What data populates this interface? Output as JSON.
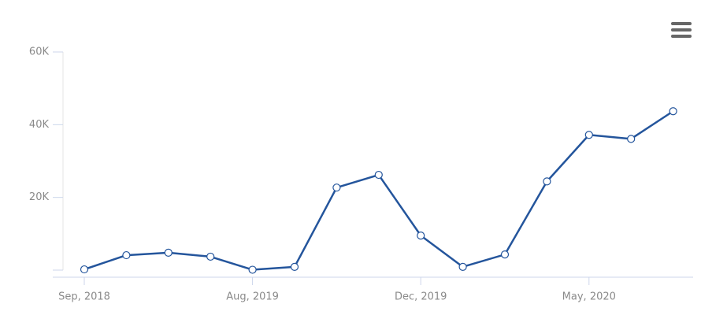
{
  "chart_data": {
    "type": "line",
    "categories": [
      "Sep, 2018",
      null,
      null,
      null,
      "Aug, 2019",
      null,
      null,
      null,
      "Dec, 2019",
      null,
      null,
      null,
      "May, 2020",
      null,
      null
    ],
    "series": [
      {
        "color": "#24559c",
        "values": [
          200,
          4100,
          4800,
          3700,
          100,
          900,
          22700,
          26200,
          9500,
          900,
          4300,
          24400,
          37200,
          36100,
          43700
        ]
      }
    ],
    "ylim": [
      0,
      60000
    ],
    "yticks": [
      {
        "value": 20000,
        "label": "20K"
      },
      {
        "value": 40000,
        "label": "40K"
      },
      {
        "value": 60000,
        "label": "60K"
      }
    ]
  }
}
